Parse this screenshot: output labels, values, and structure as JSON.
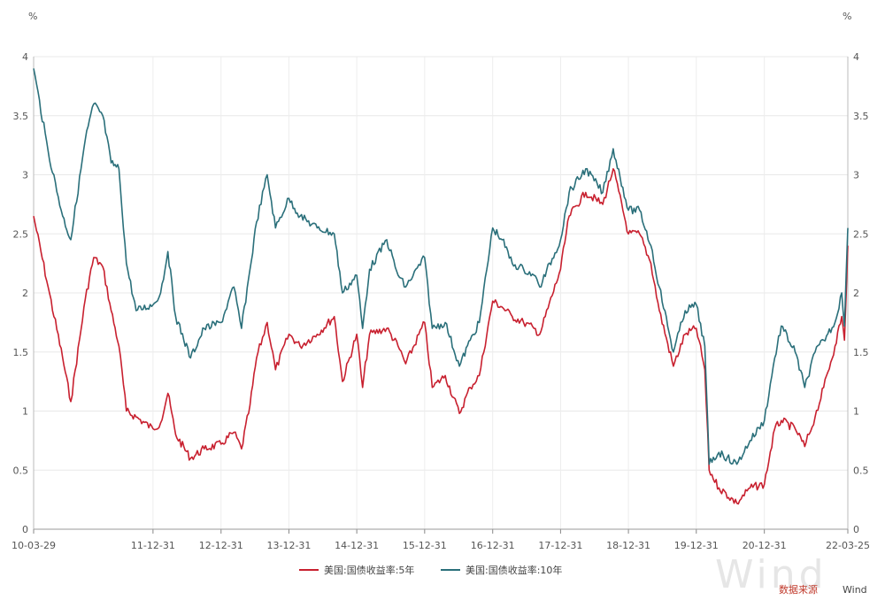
{
  "chart_data": {
    "type": "line",
    "title": "",
    "y_unit_left": "%",
    "y_unit_right": "%",
    "ylim": [
      0,
      4
    ],
    "yticks": [
      0,
      0.5,
      1,
      1.5,
      2,
      2.5,
      3,
      3.5,
      4
    ],
    "xlim": [
      "2010-03-29",
      "2022-03-25"
    ],
    "xtick_labels": [
      "10-03-29",
      "11-12-31",
      "12-12-31",
      "13-12-31",
      "14-12-31",
      "15-12-31",
      "16-12-31",
      "17-12-31",
      "18-12-31",
      "19-12-31",
      "20-12-31",
      "22-03-25"
    ],
    "xtick_dates": [
      "2010-03-29",
      "2011-12-31",
      "2012-12-31",
      "2013-12-31",
      "2014-12-31",
      "2015-12-31",
      "2016-12-31",
      "2017-12-31",
      "2018-12-31",
      "2019-12-31",
      "2020-12-31",
      "2022-03-25"
    ],
    "grid": true,
    "legend_position": "bottom",
    "series": [
      {
        "name": "美国:国债收益率:5年",
        "color": "#c8202f",
        "points": [
          [
            "2010-03-29",
            2.65
          ],
          [
            "2010-06-15",
            2.05
          ],
          [
            "2010-09-01",
            1.45
          ],
          [
            "2010-10-15",
            1.08
          ],
          [
            "2011-01-01",
            1.95
          ],
          [
            "2011-02-15",
            2.3
          ],
          [
            "2011-04-05",
            2.22
          ],
          [
            "2011-05-20",
            1.85
          ],
          [
            "2011-07-01",
            1.55
          ],
          [
            "2011-08-10",
            1.0
          ],
          [
            "2011-10-01",
            0.95
          ],
          [
            "2011-12-31",
            0.85
          ],
          [
            "2012-02-10",
            0.9
          ],
          [
            "2012-03-20",
            1.15
          ],
          [
            "2012-05-01",
            0.8
          ],
          [
            "2012-07-20",
            0.6
          ],
          [
            "2012-10-01",
            0.68
          ],
          [
            "2012-12-31",
            0.72
          ],
          [
            "2013-03-10",
            0.82
          ],
          [
            "2013-04-20",
            0.68
          ],
          [
            "2013-06-05",
            1.05
          ],
          [
            "2013-07-10",
            1.45
          ],
          [
            "2013-09-05",
            1.75
          ],
          [
            "2013-10-20",
            1.35
          ],
          [
            "2013-12-31",
            1.65
          ],
          [
            "2014-03-01",
            1.55
          ],
          [
            "2014-06-01",
            1.65
          ],
          [
            "2014-09-01",
            1.8
          ],
          [
            "2014-10-15",
            1.25
          ],
          [
            "2014-12-31",
            1.65
          ],
          [
            "2015-01-31",
            1.2
          ],
          [
            "2015-03-10",
            1.65
          ],
          [
            "2015-06-10",
            1.7
          ],
          [
            "2015-08-10",
            1.55
          ],
          [
            "2015-09-20",
            1.4
          ],
          [
            "2015-12-31",
            1.75
          ],
          [
            "2016-02-10",
            1.2
          ],
          [
            "2016-04-20",
            1.3
          ],
          [
            "2016-07-05",
            0.98
          ],
          [
            "2016-09-01",
            1.2
          ],
          [
            "2016-10-20",
            1.3
          ],
          [
            "2016-12-31",
            1.93
          ],
          [
            "2017-02-20",
            1.88
          ],
          [
            "2017-04-15",
            1.8
          ],
          [
            "2017-06-15",
            1.75
          ],
          [
            "2017-08-10",
            1.7
          ],
          [
            "2017-09-10",
            1.65
          ],
          [
            "2017-12-31",
            2.2
          ],
          [
            "2018-02-15",
            2.65
          ],
          [
            "2018-05-15",
            2.85
          ],
          [
            "2018-08-15",
            2.75
          ],
          [
            "2018-10-10",
            3.05
          ],
          [
            "2018-12-31",
            2.5
          ],
          [
            "2019-03-01",
            2.5
          ],
          [
            "2019-05-01",
            2.25
          ],
          [
            "2019-06-15",
            1.85
          ],
          [
            "2019-08-30",
            1.38
          ],
          [
            "2019-11-01",
            1.65
          ],
          [
            "2019-12-31",
            1.7
          ],
          [
            "2020-02-15",
            1.35
          ],
          [
            "2020-03-09",
            0.5
          ],
          [
            "2020-05-01",
            0.35
          ],
          [
            "2020-08-05",
            0.22
          ],
          [
            "2020-10-15",
            0.35
          ],
          [
            "2020-12-31",
            0.38
          ],
          [
            "2021-02-25",
            0.85
          ],
          [
            "2021-04-01",
            0.92
          ],
          [
            "2021-06-15",
            0.85
          ],
          [
            "2021-08-05",
            0.7
          ],
          [
            "2021-09-30",
            0.95
          ],
          [
            "2021-11-15",
            1.2
          ],
          [
            "2022-01-15",
            1.55
          ],
          [
            "2022-02-20",
            1.8
          ],
          [
            "2022-03-07",
            1.6
          ],
          [
            "2022-03-25",
            2.4
          ]
        ]
      },
      {
        "name": "美国:国债收益率:10年",
        "color": "#2a6f7a",
        "points": [
          [
            "2010-03-29",
            3.9
          ],
          [
            "2010-06-15",
            3.2
          ],
          [
            "2010-09-01",
            2.65
          ],
          [
            "2010-10-15",
            2.45
          ],
          [
            "2011-01-01",
            3.3
          ],
          [
            "2011-02-15",
            3.6
          ],
          [
            "2011-04-05",
            3.5
          ],
          [
            "2011-05-20",
            3.1
          ],
          [
            "2011-07-01",
            3.05
          ],
          [
            "2011-08-10",
            2.25
          ],
          [
            "2011-10-01",
            1.85
          ],
          [
            "2011-12-31",
            1.9
          ],
          [
            "2012-02-10",
            2.0
          ],
          [
            "2012-03-20",
            2.35
          ],
          [
            "2012-05-01",
            1.8
          ],
          [
            "2012-07-20",
            1.45
          ],
          [
            "2012-10-01",
            1.7
          ],
          [
            "2012-12-31",
            1.75
          ],
          [
            "2013-03-10",
            2.05
          ],
          [
            "2013-04-20",
            1.7
          ],
          [
            "2013-06-05",
            2.2
          ],
          [
            "2013-07-10",
            2.6
          ],
          [
            "2013-09-05",
            3.0
          ],
          [
            "2013-10-20",
            2.55
          ],
          [
            "2013-12-31",
            2.8
          ],
          [
            "2014-03-01",
            2.65
          ],
          [
            "2014-06-01",
            2.55
          ],
          [
            "2014-09-01",
            2.5
          ],
          [
            "2014-10-15",
            2.0
          ],
          [
            "2014-12-31",
            2.15
          ],
          [
            "2015-01-31",
            1.7
          ],
          [
            "2015-03-10",
            2.2
          ],
          [
            "2015-06-10",
            2.45
          ],
          [
            "2015-08-10",
            2.15
          ],
          [
            "2015-09-20",
            2.05
          ],
          [
            "2015-12-31",
            2.3
          ],
          [
            "2016-02-10",
            1.7
          ],
          [
            "2016-04-20",
            1.75
          ],
          [
            "2016-07-05",
            1.38
          ],
          [
            "2016-09-01",
            1.6
          ],
          [
            "2016-10-20",
            1.75
          ],
          [
            "2016-12-31",
            2.55
          ],
          [
            "2017-02-20",
            2.45
          ],
          [
            "2017-04-15",
            2.25
          ],
          [
            "2017-06-15",
            2.2
          ],
          [
            "2017-08-10",
            2.15
          ],
          [
            "2017-09-10",
            2.05
          ],
          [
            "2017-12-31",
            2.45
          ],
          [
            "2018-02-15",
            2.85
          ],
          [
            "2018-05-15",
            3.05
          ],
          [
            "2018-08-15",
            2.85
          ],
          [
            "2018-10-10",
            3.22
          ],
          [
            "2018-12-31",
            2.7
          ],
          [
            "2019-03-01",
            2.7
          ],
          [
            "2019-05-01",
            2.4
          ],
          [
            "2019-06-15",
            2.05
          ],
          [
            "2019-08-30",
            1.5
          ],
          [
            "2019-11-01",
            1.85
          ],
          [
            "2019-12-31",
            1.9
          ],
          [
            "2020-02-15",
            1.55
          ],
          [
            "2020-03-09",
            0.55
          ],
          [
            "2020-05-01",
            0.65
          ],
          [
            "2020-08-05",
            0.55
          ],
          [
            "2020-10-15",
            0.75
          ],
          [
            "2020-12-31",
            0.92
          ],
          [
            "2021-02-25",
            1.45
          ],
          [
            "2021-04-01",
            1.72
          ],
          [
            "2021-06-15",
            1.5
          ],
          [
            "2021-08-05",
            1.2
          ],
          [
            "2021-09-30",
            1.5
          ],
          [
            "2021-11-15",
            1.6
          ],
          [
            "2022-01-15",
            1.75
          ],
          [
            "2022-02-20",
            2.0
          ],
          [
            "2022-03-07",
            1.72
          ],
          [
            "2022-03-25",
            2.55
          ]
        ]
      }
    ]
  },
  "legend": {
    "items": [
      {
        "label": "美国:国债收益率:5年",
        "color": "#c8202f"
      },
      {
        "label": "美国:国债收益率:10年",
        "color": "#2a6f7a"
      }
    ]
  },
  "source_label": "数据来源",
  "watermark_text": "Wind",
  "watermark_small": "Wind"
}
